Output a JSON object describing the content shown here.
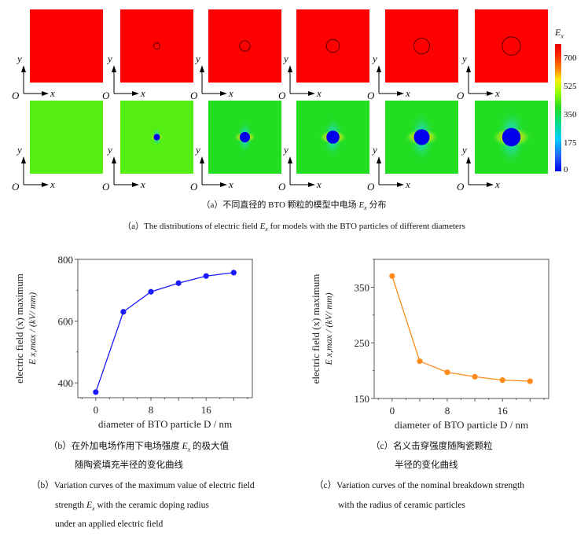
{
  "figure_a": {
    "colorbar": {
      "label": "E",
      "label_sub": "x",
      "ticks": [
        "700",
        "525",
        "350",
        "175",
        "0"
      ],
      "range": [
        0,
        800
      ]
    },
    "axis_indicator": {
      "origin": "O",
      "x": "x",
      "y": "y"
    },
    "top_row_color": "#ff0000",
    "bottom_row_color": "#55ee11",
    "particle_core_color": "#0000ee",
    "panels_count": 6,
    "caption_zh_prefix": "（a）不同直径的 BTO 颗粒的模型中电场 ",
    "caption_zh_E": "E",
    "caption_zh_sub": "x",
    "caption_zh_suffix": " 分布",
    "caption_en_prefix": "（a）The distributions of electric field ",
    "caption_en_E": "E",
    "caption_en_sub": "x",
    "caption_en_suffix": " for models with the BTO particles of different diameters"
  },
  "chart_data": [
    {
      "id": "b",
      "type": "line",
      "x": [
        0,
        4,
        8,
        12,
        16,
        20
      ],
      "series": [
        {
          "name": "E_x,max",
          "values": [
            370,
            630,
            695,
            723,
            746,
            757
          ],
          "color": "#1a1aff"
        }
      ],
      "xlabel": "diameter of BTO particle D / nm",
      "ylabel_line1": "electric field (x) maximum",
      "ylabel_line2": "E x,max / (kV/ mm)",
      "xticks": [
        0,
        8,
        16
      ],
      "yticks": [
        400,
        600,
        800
      ],
      "xlim": [
        -2.6,
        22.7
      ],
      "ylim": [
        352,
        800
      ],
      "grid": false,
      "legend": "none"
    },
    {
      "id": "c",
      "type": "line",
      "x": [
        0,
        4,
        8,
        12,
        16,
        20
      ],
      "series": [
        {
          "name": "E_x,max",
          "values": [
            370,
            217,
            197,
            189,
            183,
            181
          ],
          "color": "#ff8a1a"
        }
      ],
      "xlabel": "diameter of BTO particle D / nm",
      "ylabel_line1": "electric field (x) maximum",
      "ylabel_line2": "E x,max / (kV/ mm)",
      "xticks": [
        0,
        8,
        16
      ],
      "yticks": [
        150,
        250,
        350
      ],
      "xlim": [
        -2.6,
        22.7
      ],
      "ylim": [
        150,
        400
      ],
      "grid": false,
      "legend": "none"
    }
  ],
  "captions": {
    "b_zh_line1_prefix": "（b）在外加电场作用下电场强度 ",
    "b_zh_E": "E",
    "b_zh_sub": "x",
    "b_zh_line1_suffix": " 的极大值",
    "b_zh_line2": "随陶瓷填充半径的变化曲线",
    "b_en_line1": "（b）Variation curves of the maximum value of electric field",
    "b_en_line2_prefix": "strength ",
    "b_en_E": "E",
    "b_en_sub": "x",
    "b_en_line2_suffix": " with the ceramic doping radius",
    "b_en_line3": "under an applied electric field",
    "c_zh_line1": "（c）名义击穿强度随陶瓷颗粒",
    "c_zh_line2": "半径的变化曲线",
    "c_en_line1": "（c）Variation curves of the nominal breakdown strength",
    "c_en_line2": "with the radius of ceramic particles"
  }
}
